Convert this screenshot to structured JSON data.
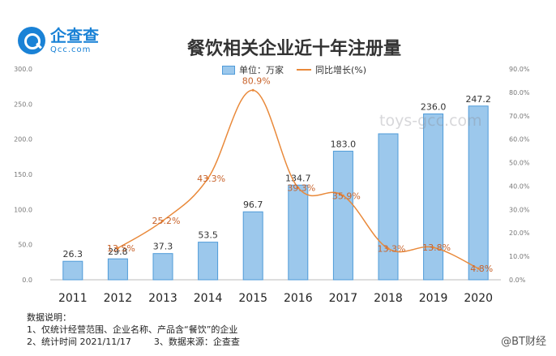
{
  "logo": {
    "cn": "企查查",
    "en": "Qcc.com",
    "icon": "magnifier-icon"
  },
  "title": "餐饮相关企业近十年注册量",
  "legend": {
    "bar_label": "单位：万家",
    "line_label": "同比增长(%)"
  },
  "notes": {
    "heading": "数据说明：",
    "line1": "1、仅统计经营范围、企业名称、产品含“餐饮”的企业",
    "line2": "2、统计时间 2021/11/17        3、数据来源：企查查"
  },
  "watermark": "toys-gcc.com",
  "footer": "@BT财经",
  "colors": {
    "bar_fill": "#9cc8ec",
    "bar_stroke": "#4f9bd9",
    "line": "#e9893a",
    "label_line": "#c8632b"
  },
  "chart_data": {
    "type": "bar",
    "categories": [
      "2011",
      "2012",
      "2013",
      "2014",
      "2015",
      "2016",
      "2017",
      "2018",
      "2019",
      "2020"
    ],
    "series": [
      {
        "name": "单位：万家",
        "type": "bar",
        "axis": "left",
        "values": [
          26.3,
          29.8,
          37.3,
          53.5,
          96.7,
          134.7,
          183.0,
          207.7,
          236.0,
          247.2
        ],
        "labels": [
          "26.3",
          "29.8",
          "37.3",
          "53.5",
          "96.7",
          "134.7",
          "183.0",
          "",
          "236.0",
          "247.2"
        ]
      },
      {
        "name": "同比增长(%)",
        "type": "line",
        "axis": "right",
        "values": [
          null,
          13.5,
          25.2,
          43.3,
          80.9,
          39.3,
          35.9,
          13.3,
          13.8,
          4.8
        ],
        "labels": [
          "",
          "13.5%",
          "25.2%",
          "43.3%",
          "80.9%",
          "39.3%",
          "35.9%",
          "13.3%",
          "13.8%",
          "4.8%"
        ]
      }
    ],
    "left_axis": {
      "min": 0,
      "max": 300,
      "ticks": [
        "0.0",
        "50.0",
        "100.0",
        "150.0",
        "200.0",
        "250.0",
        "300.0"
      ]
    },
    "right_axis": {
      "min": 0,
      "max": 90,
      "ticks": [
        "0.0%",
        "10.0%",
        "20.0%",
        "30.0%",
        "40.0%",
        "50.0%",
        "60.0%",
        "70.0%",
        "80.0%",
        "90.0%"
      ]
    },
    "grid": false,
    "legend_position": "top-center"
  }
}
